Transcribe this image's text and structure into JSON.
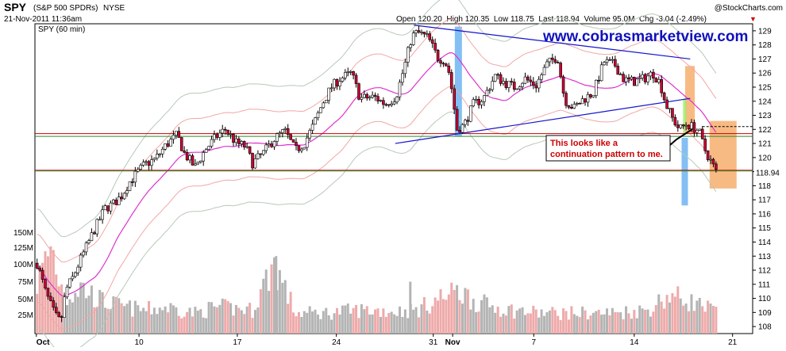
{
  "header": {
    "symbol": "SPY",
    "name": "(S&P 500 SPDRs)",
    "exchange": "NYSE",
    "copyright": "@StockCharts.com",
    "datetime": "21-Nov-2011 11:36am",
    "quote": "Open 120.20  High 120.35  Low 118.75  Last 118.94  Volume 95.0M  Chg -3.04 (-2.49%)",
    "chg_arrow": "▼",
    "panel_label": "SPY (60 min)"
  },
  "watermark": "www.cobrasmarketview.com",
  "annotation": {
    "line1": "This looks like a",
    "line2": "continuation pattern to me."
  },
  "colors": {
    "up_body": "#ffffff",
    "down_body": "#cc0033",
    "candle_outline": "#000000",
    "ma": "#dd33cc",
    "bands_outer": "#f2a7a7",
    "bands_gray": "#b7c9b7",
    "horizontal_red": "#cc0000",
    "horizontal_green": "#2e8b2e",
    "trendline": "#1414cc",
    "highlight_blue": "#5aaaf0",
    "highlight_orange": "#f5a35a",
    "vol_up": "#b4b4b4",
    "vol_down": "#eeaaaa",
    "annotation_text": "#cc0000",
    "watermark": "#1111bb"
  },
  "chart_data": {
    "type": "candlestick",
    "title": "SPY (60 min)",
    "interval": "60 min",
    "x_labels": [
      "Oct",
      "10",
      "17",
      "24",
      "31",
      "Nov",
      "7",
      "14",
      "21"
    ],
    "price_axis": {
      "min": 107.5,
      "max": 129.5,
      "ticks": [
        108,
        109,
        110,
        111,
        112,
        113,
        114,
        115,
        116,
        117,
        118,
        119,
        120,
        121,
        122,
        123,
        124,
        125,
        126,
        127,
        128,
        129
      ]
    },
    "volume_axis": {
      "ticks": [
        "25M",
        "50M",
        "75M",
        "100M",
        "125M",
        "150M"
      ]
    },
    "last_price": 118.94,
    "dashed_level": 122.2,
    "horizontal_lines": [
      {
        "price": 121.7,
        "color": "red"
      },
      {
        "price": 121.5,
        "color": "green"
      },
      {
        "price": 119.1,
        "color": "red"
      },
      {
        "price": 119.05,
        "color": "green"
      }
    ],
    "trendlines": [
      {
        "from": [
          0.528,
          129.4
        ],
        "to": [
          0.913,
          127.0
        ]
      },
      {
        "from": [
          0.502,
          121.0
        ],
        "to": [
          0.913,
          124.2
        ]
      }
    ],
    "price_path": [
      [
        0.0,
        112.5
      ],
      [
        0.012,
        110.4
      ],
      [
        0.025,
        108.8
      ],
      [
        0.033,
        108.3
      ],
      [
        0.04,
        110.6
      ],
      [
        0.05,
        111.5
      ],
      [
        0.06,
        112.7
      ],
      [
        0.08,
        114.9
      ],
      [
        0.095,
        116.4
      ],
      [
        0.106,
        116.7
      ],
      [
        0.118,
        117.3
      ],
      [
        0.128,
        118.2
      ],
      [
        0.139,
        118.9
      ],
      [
        0.15,
        119.5
      ],
      [
        0.165,
        119.9
      ],
      [
        0.18,
        120.9
      ],
      [
        0.195,
        121.6
      ],
      [
        0.205,
        120.3
      ],
      [
        0.22,
        119.3
      ],
      [
        0.235,
        120.6
      ],
      [
        0.25,
        121.5
      ],
      [
        0.262,
        122.0
      ],
      [
        0.278,
        121.0
      ],
      [
        0.29,
        120.8
      ],
      [
        0.3,
        119.6
      ],
      [
        0.315,
        120.3
      ],
      [
        0.33,
        121.3
      ],
      [
        0.345,
        121.9
      ],
      [
        0.36,
        120.5
      ],
      [
        0.372,
        121.0
      ],
      [
        0.385,
        122.3
      ],
      [
        0.398,
        123.9
      ],
      [
        0.41,
        125.0
      ],
      [
        0.422,
        125.6
      ],
      [
        0.438,
        126.0
      ],
      [
        0.45,
        124.2
      ],
      [
        0.47,
        124.3
      ],
      [
        0.485,
        123.8
      ],
      [
        0.5,
        124.3
      ],
      [
        0.512,
        126.5
      ],
      [
        0.522,
        128.6
      ],
      [
        0.53,
        128.9
      ],
      [
        0.545,
        128.5
      ],
      [
        0.558,
        127.1
      ],
      [
        0.568,
        126.9
      ],
      [
        0.575,
        125.9
      ],
      [
        0.585,
        122.0
      ],
      [
        0.595,
        122.3
      ],
      [
        0.608,
        123.8
      ],
      [
        0.622,
        124.2
      ],
      [
        0.638,
        125.8
      ],
      [
        0.652,
        125.3
      ],
      [
        0.665,
        125.0
      ],
      [
        0.68,
        125.6
      ],
      [
        0.695,
        125.1
      ],
      [
        0.71,
        126.6
      ],
      [
        0.725,
        127.2
      ],
      [
        0.735,
        124.1
      ],
      [
        0.748,
        123.5
      ],
      [
        0.76,
        124.1
      ],
      [
        0.775,
        124.6
      ],
      [
        0.79,
        126.8
      ],
      [
        0.805,
        126.6
      ],
      [
        0.818,
        125.5
      ],
      [
        0.832,
        125.4
      ],
      [
        0.845,
        125.6
      ],
      [
        0.858,
        126.0
      ],
      [
        0.868,
        125.3
      ],
      [
        0.876,
        123.8
      ],
      [
        0.885,
        122.8
      ],
      [
        0.895,
        122.0
      ],
      [
        0.905,
        122.4
      ],
      [
        0.915,
        122.1
      ],
      [
        0.922,
        121.9
      ],
      [
        0.93,
        120.6
      ],
      [
        0.94,
        119.6
      ],
      [
        0.946,
        119.0
      ]
    ],
    "volume_profile": [
      [
        0.0,
        85
      ],
      [
        0.02,
        150
      ],
      [
        0.03,
        95
      ],
      [
        0.04,
        60
      ],
      [
        0.06,
        80
      ],
      [
        0.09,
        55
      ],
      [
        0.12,
        45
      ],
      [
        0.15,
        40
      ],
      [
        0.18,
        45
      ],
      [
        0.22,
        35
      ],
      [
        0.25,
        45
      ],
      [
        0.3,
        40
      ],
      [
        0.33,
        120
      ],
      [
        0.36,
        35
      ],
      [
        0.4,
        35
      ],
      [
        0.45,
        40
      ],
      [
        0.5,
        38
      ],
      [
        0.53,
        40
      ],
      [
        0.56,
        60
      ],
      [
        0.59,
        70
      ],
      [
        0.62,
        50
      ],
      [
        0.66,
        40
      ],
      [
        0.7,
        35
      ],
      [
        0.75,
        35
      ],
      [
        0.8,
        35
      ],
      [
        0.85,
        40
      ],
      [
        0.88,
        65
      ],
      [
        0.91,
        55
      ],
      [
        0.94,
        40
      ]
    ]
  }
}
